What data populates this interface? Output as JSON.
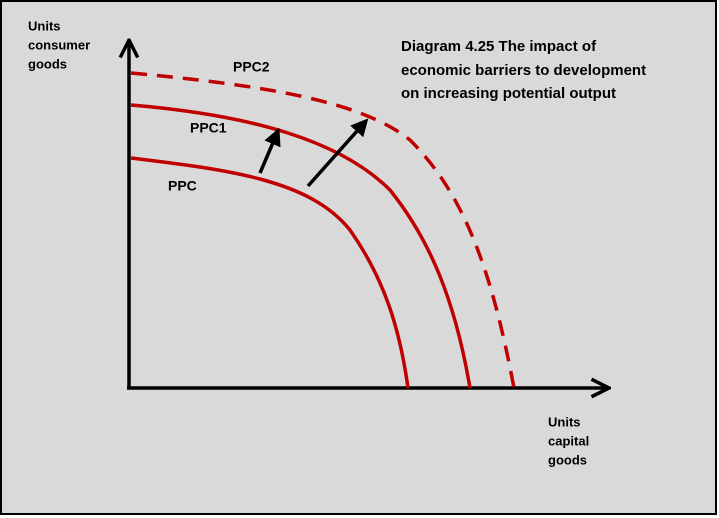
{
  "title": {
    "lines": [
      "Diagram 4.25 The impact of",
      "economic barriers to development",
      "on increasing potential output"
    ]
  },
  "y_axis": {
    "label_lines": [
      "Units",
      "consumer",
      "goods"
    ]
  },
  "x_axis": {
    "label_lines": [
      "Units",
      "capital",
      "goods"
    ]
  },
  "curves": [
    {
      "label": "PPC"
    },
    {
      "label": "PPC1"
    },
    {
      "label": "PPC2"
    }
  ]
}
